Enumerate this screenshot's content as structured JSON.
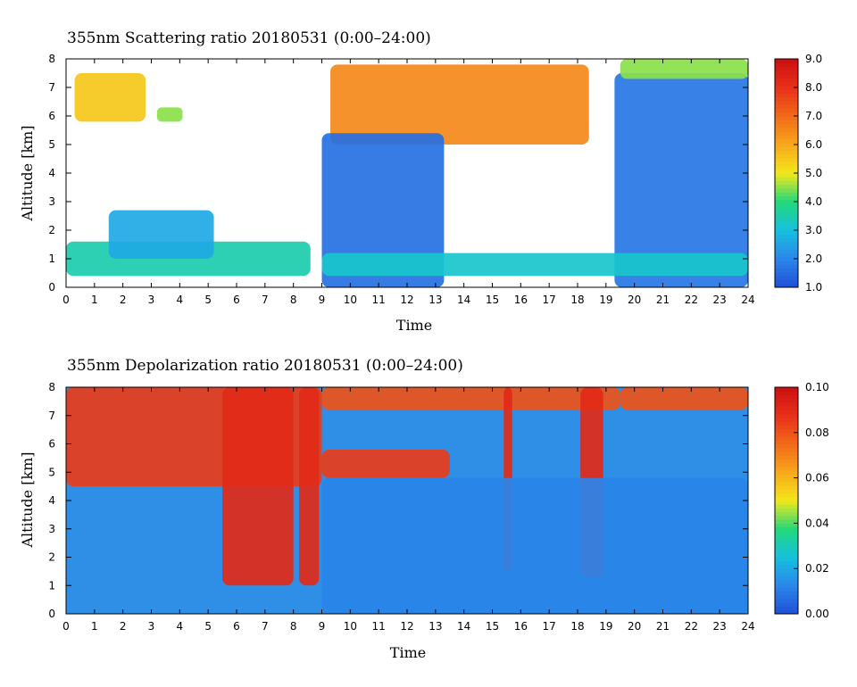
{
  "chart_data": [
    {
      "type": "heatmap",
      "title": "355nm Scattering ratio  20180531 (0:00–24:00)",
      "xlabel": "Time",
      "ylabel": "Altitude [km]",
      "xlim": [
        0,
        24
      ],
      "ylim": [
        0,
        8
      ],
      "x_ticks": [
        "0",
        "1",
        "2",
        "3",
        "4",
        "5",
        "6",
        "7",
        "8",
        "9",
        "10",
        "11",
        "12",
        "13",
        "14",
        "15",
        "16",
        "17",
        "18",
        "19",
        "20",
        "21",
        "22",
        "23",
        "24"
      ],
      "y_ticks": [
        "0",
        "1",
        "2",
        "3",
        "4",
        "5",
        "6",
        "7",
        "8"
      ],
      "colorbar": {
        "range": [
          1.0,
          9.0
        ],
        "tick_labels": [
          "1.0",
          "2.0",
          "3.0",
          "4.0",
          "5.0",
          "6.0",
          "7.0",
          "8.0",
          "9.0"
        ]
      },
      "features": [
        {
          "feature": "cloud layer",
          "t_start": 0.3,
          "t_end": 2.8,
          "alt_bottom": 5.8,
          "alt_top": 7.5,
          "value": 5.5
        },
        {
          "feature": "cloud patch",
          "t_start": 3.2,
          "t_end": 4.1,
          "alt_bottom": 5.8,
          "alt_top": 6.3,
          "value": 4.5
        },
        {
          "feature": "low layer",
          "t_start": 0.0,
          "t_end": 8.6,
          "alt_bottom": 0.4,
          "alt_top": 1.6,
          "value": 3.5
        },
        {
          "feature": "aerosol bump",
          "t_start": 1.5,
          "t_end": 5.2,
          "alt_bottom": 1.0,
          "alt_top": 2.7,
          "value": 2.6
        },
        {
          "feature": "cloud base layer",
          "t_start": 9.3,
          "t_end": 18.4,
          "alt_bottom": 5.0,
          "alt_top": 7.8,
          "value": 6.5
        },
        {
          "feature": "lower column",
          "t_start": 9.0,
          "t_end": 13.3,
          "alt_bottom": 0.0,
          "alt_top": 5.4,
          "value": 1.6
        },
        {
          "feature": "lower column",
          "t_start": 19.3,
          "t_end": 24.0,
          "alt_bottom": 0.0,
          "alt_top": 7.5,
          "value": 1.7
        },
        {
          "feature": "boundary layer",
          "t_start": 9.0,
          "t_end": 24.0,
          "alt_bottom": 0.4,
          "alt_top": 1.2,
          "value": 3.2
        },
        {
          "feature": "upper layer",
          "t_start": 19.5,
          "t_end": 24.0,
          "alt_bottom": 7.3,
          "alt_top": 8.0,
          "value": 4.5
        }
      ]
    },
    {
      "type": "heatmap",
      "title": "355nm Depolarization ratio  20180531 (0:00–24:00)",
      "xlabel": "Time",
      "ylabel": "Altitude [km]",
      "xlim": [
        0,
        24
      ],
      "ylim": [
        0,
        8
      ],
      "x_ticks": [
        "0",
        "1",
        "2",
        "3",
        "4",
        "5",
        "6",
        "7",
        "8",
        "9",
        "10",
        "11",
        "12",
        "13",
        "14",
        "15",
        "16",
        "17",
        "18",
        "19",
        "20",
        "21",
        "22",
        "23",
        "24"
      ],
      "y_ticks": [
        "0",
        "1",
        "2",
        "3",
        "4",
        "5",
        "6",
        "7",
        "8"
      ],
      "colorbar": {
        "range": [
          0.0,
          0.1
        ],
        "tick_labels": [
          "0.00",
          "0.02",
          "0.04",
          "0.06",
          "0.08",
          "0.10"
        ]
      },
      "features": [
        {
          "feature": "noisy upper region",
          "t_start": 0.0,
          "t_end": 9.0,
          "alt_bottom": 4.5,
          "alt_top": 8.0,
          "value": 0.085
        },
        {
          "feature": "high depol column",
          "t_start": 5.5,
          "t_end": 8.0,
          "alt_bottom": 1.0,
          "alt_top": 8.0,
          "value": 0.09
        },
        {
          "feature": "high depol column",
          "t_start": 8.2,
          "t_end": 8.9,
          "alt_bottom": 1.0,
          "alt_top": 8.0,
          "value": 0.09
        },
        {
          "feature": "cloud layer",
          "t_start": 9.0,
          "t_end": 13.5,
          "alt_bottom": 4.8,
          "alt_top": 5.8,
          "value": 0.085
        },
        {
          "feature": "upper noise",
          "t_start": 9.0,
          "t_end": 19.5,
          "alt_bottom": 7.2,
          "alt_top": 8.0,
          "value": 0.08
        },
        {
          "feature": "high depol column",
          "t_start": 15.4,
          "t_end": 15.7,
          "alt_bottom": 1.5,
          "alt_top": 8.0,
          "value": 0.09
        },
        {
          "feature": "high depol column",
          "t_start": 18.1,
          "t_end": 18.9,
          "alt_bottom": 1.3,
          "alt_top": 8.0,
          "value": 0.09
        },
        {
          "feature": "upper layer",
          "t_start": 19.5,
          "t_end": 24.0,
          "alt_bottom": 7.2,
          "alt_top": 8.0,
          "value": 0.08
        },
        {
          "feature": "background",
          "t_start": 9.0,
          "t_end": 24.0,
          "alt_bottom": 0.0,
          "alt_top": 4.8,
          "value": 0.012
        }
      ]
    }
  ]
}
